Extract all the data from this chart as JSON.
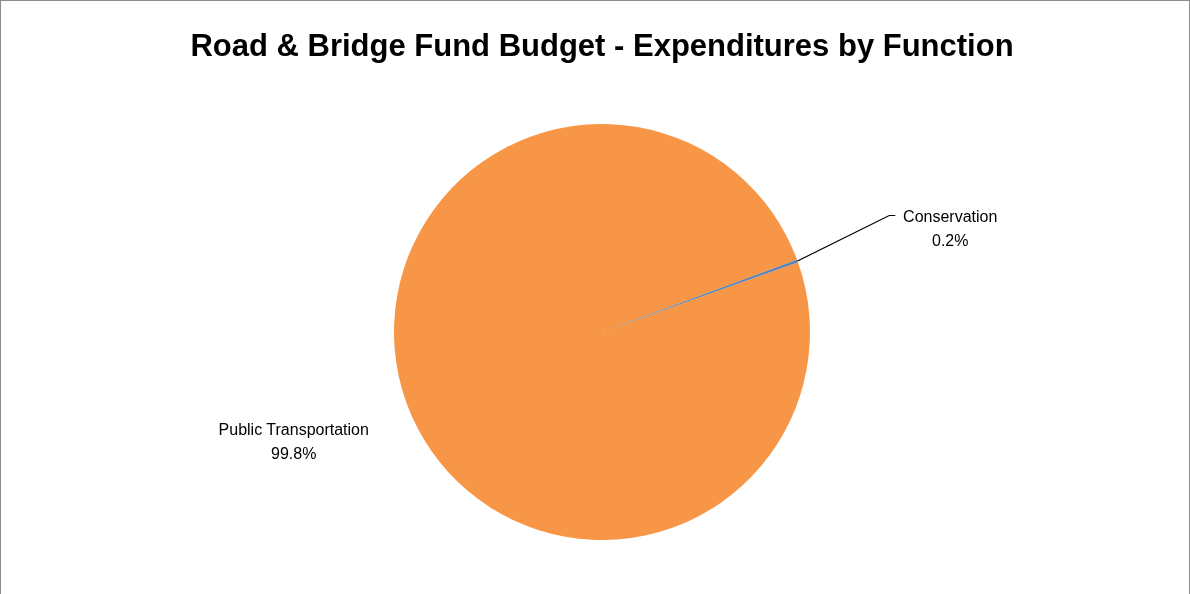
{
  "chart_data": {
    "type": "pie",
    "title": "Road & Bridge Fund Budget - Expenditures by Function",
    "categories": [
      "Public Transportation",
      "Conservation"
    ],
    "values": [
      99.8,
      0.2
    ],
    "colors": [
      "#f79646",
      "#4f81bd"
    ],
    "value_labels": [
      "99.8%",
      "0.2%"
    ]
  }
}
